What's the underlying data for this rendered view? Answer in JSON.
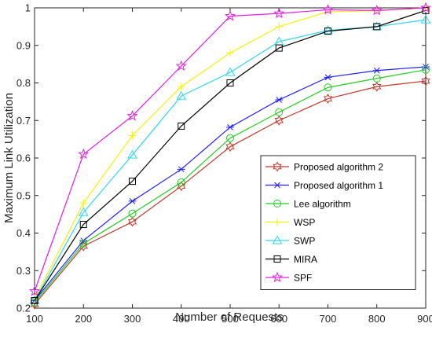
{
  "chart_data": {
    "type": "line",
    "title": "",
    "xlabel": "Number of Requests",
    "ylabel": "Maximum Link Utilization",
    "x": [
      100,
      200,
      300,
      400,
      500,
      600,
      700,
      800,
      900
    ],
    "xticks": [
      "100",
      "200",
      "300",
      "400",
      "500",
      "600",
      "700",
      "800",
      "900"
    ],
    "yticks": [
      "0.2",
      "0.3",
      "0.4",
      "0.5",
      "0.6",
      "0.7",
      "0.8",
      "0.9",
      "1"
    ],
    "xlim": [
      100,
      900
    ],
    "ylim": [
      0.2,
      1.0
    ],
    "grid": false,
    "legend_position": "lower-right",
    "series": [
      {
        "name": "Proposed algorithm 2",
        "marker": "hexagram",
        "color": "#c0392b",
        "values": [
          0.21,
          0.365,
          0.43,
          0.525,
          0.63,
          0.7,
          0.758,
          0.79,
          0.805
        ]
      },
      {
        "name": "Proposed algorithm 1",
        "marker": "asterisk",
        "color": "#1f1fff",
        "values": [
          0.22,
          0.38,
          0.485,
          0.57,
          0.682,
          0.755,
          0.815,
          0.833,
          0.843
        ]
      },
      {
        "name": "Lee algorithm",
        "marker": "circle",
        "color": "#22cc22",
        "values": [
          0.215,
          0.372,
          0.452,
          0.535,
          0.653,
          0.722,
          0.788,
          0.812,
          0.835
        ]
      },
      {
        "name": "WSP",
        "marker": "plus",
        "color": "#f2f20f",
        "values": [
          0.225,
          0.48,
          0.66,
          0.79,
          0.88,
          0.95,
          0.99,
          0.992,
          1.0
        ]
      },
      {
        "name": "SWP",
        "marker": "triangle",
        "color": "#33d6f0",
        "values": [
          0.22,
          0.455,
          0.608,
          0.765,
          0.828,
          0.91,
          0.94,
          0.95,
          0.968
        ]
      },
      {
        "name": "MIRA",
        "marker": "square",
        "color": "#000000",
        "values": [
          0.22,
          0.423,
          0.538,
          0.685,
          0.8,
          0.893,
          0.938,
          0.95,
          0.993
        ]
      },
      {
        "name": "SPF",
        "marker": "pentagram",
        "color": "#e020e0",
        "values": [
          0.245,
          0.61,
          0.712,
          0.845,
          0.978,
          0.985,
          0.995,
          0.993,
          1.0
        ]
      }
    ]
  }
}
